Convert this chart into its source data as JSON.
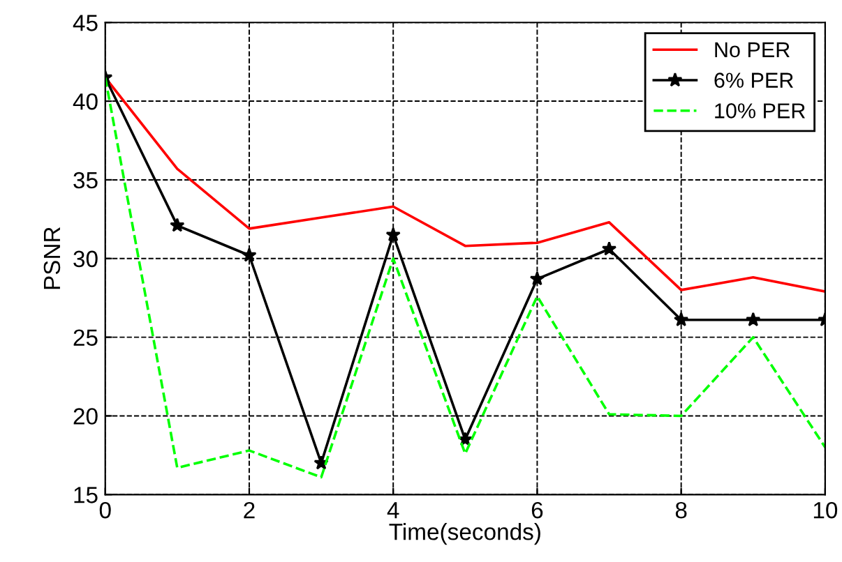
{
  "chart_data": {
    "type": "line",
    "xlabel": "Time(seconds)",
    "ylabel": "PSNR",
    "x": [
      0,
      1,
      2,
      3,
      4,
      5,
      6,
      7,
      8,
      9,
      10
    ],
    "series": [
      {
        "name": "No PER",
        "color": "#ff0000",
        "values": [
          41.5,
          35.7,
          31.9,
          32.6,
          33.3,
          30.8,
          31.0,
          32.3,
          28.0,
          28.8,
          27.9
        ],
        "marker": "none",
        "line_style": "solid"
      },
      {
        "name": "6% PER",
        "color": "#000000",
        "values": [
          41.5,
          32.1,
          30.2,
          17.0,
          31.5,
          18.5,
          28.7,
          30.6,
          26.1,
          26.1,
          26.1
        ],
        "marker": "star",
        "line_style": "solid"
      },
      {
        "name": "10% PER",
        "color": "#00ff00",
        "values": [
          41.5,
          16.7,
          17.8,
          16.1,
          30.0,
          17.6,
          27.6,
          20.1,
          20.0,
          25.0,
          18.0
        ],
        "marker": "none",
        "line_style": "dashed"
      }
    ],
    "xlim": [
      0,
      10
    ],
    "xticks": [
      0,
      2,
      4,
      6,
      8,
      10
    ],
    "ylim": [
      15,
      45
    ],
    "yticks": [
      15,
      20,
      25,
      30,
      35,
      40,
      45
    ],
    "grid": true,
    "legend": "top right"
  }
}
